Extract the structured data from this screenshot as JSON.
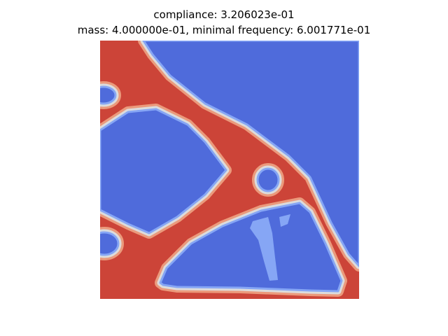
{
  "figure": {
    "title_line_1": "compliance: 3.206023e-01",
    "title_line_2": "mass: 4.000000e-01, minimal frequency: 6.001771e-01"
  },
  "colormap": {
    "name": "coolwarm",
    "void": "#4f6bdb",
    "void_edge": "#86a6f5",
    "mid": "#dcdcdc",
    "solid_edge": "#eb9a7c",
    "solid": "#cc4438"
  }
}
